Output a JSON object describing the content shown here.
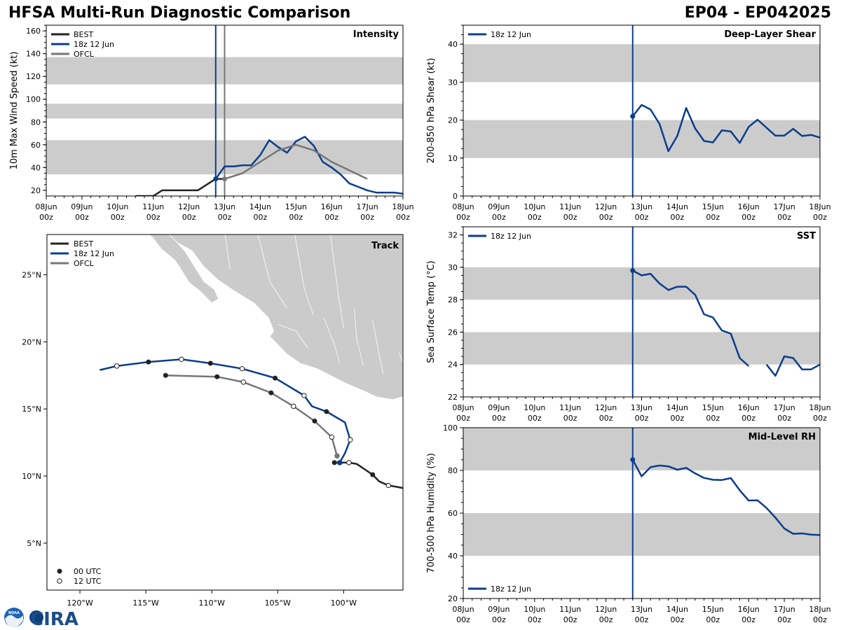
{
  "header": {
    "title": "HFSA Multi-Run Diagnostic Comparison",
    "storm_id": "EP04 - EP042025"
  },
  "logo": {
    "text": "CIRA",
    "noaa": "NOAA"
  },
  "colors": {
    "best": "#222222",
    "run": "#0b3d8c",
    "ofcl": "#777777",
    "band": "#cccccc",
    "land": "#cbcbcb"
  },
  "time_axis": {
    "labels": [
      "08Jun\n00z",
      "09Jun\n00z",
      "10Jun\n00z",
      "11Jun\n00z",
      "12Jun\n00z",
      "13Jun\n00z",
      "14Jun\n00z",
      "15Jun\n00z",
      "16Jun\n00z",
      "17Jun\n00z",
      "18Jun\n00z"
    ],
    "init_time_h": 114,
    "init_label": "18z 12 Jun"
  },
  "chart_data": [
    {
      "id": "intensity",
      "type": "line",
      "title": "Intensity",
      "ylabel": "10m Max Wind Speed (kt)",
      "xrange_h": [
        0,
        240
      ],
      "ylim": [
        15,
        165
      ],
      "yticks": [
        20,
        40,
        60,
        80,
        100,
        120,
        140,
        160
      ],
      "bands": [
        [
          34,
          64
        ],
        [
          83,
          96
        ],
        [
          113,
          137
        ]
      ],
      "vlines": [
        {
          "x_h": 114,
          "series": "run"
        },
        {
          "x_h": 120,
          "series": "ofcl"
        }
      ],
      "legend": [
        "BEST",
        "18z 12 Jun",
        "OFCL"
      ],
      "series": [
        {
          "name": "BEST",
          "key": "best",
          "x_h": [
            60,
            66,
            72,
            78,
            84,
            90,
            96,
            102,
            108,
            114,
            120
          ],
          "values": [
            15,
            15,
            15,
            20,
            20,
            20,
            20,
            20,
            25,
            30,
            30
          ]
        },
        {
          "name": "18z 12 Jun",
          "key": "run",
          "x_h": [
            114,
            120,
            126,
            132,
            138,
            144,
            150,
            156,
            162,
            168,
            174,
            180,
            186,
            192,
            198,
            204,
            210,
            216,
            222,
            228,
            234,
            240
          ],
          "values": [
            30,
            41,
            41,
            42,
            42,
            51,
            64,
            58,
            53,
            63,
            67,
            59,
            45,
            40,
            34,
            26,
            23,
            20,
            18,
            18,
            18,
            17
          ]
        },
        {
          "name": "OFCL",
          "key": "ofcl",
          "x_h": [
            120,
            132,
            144,
            156,
            168,
            180,
            192,
            216
          ],
          "values": [
            30,
            35,
            45,
            55,
            60,
            55,
            45,
            30
          ]
        }
      ]
    },
    {
      "id": "shear",
      "type": "line",
      "title": "Deep-Layer Shear",
      "ylabel": "200-850 hPa Shear (kt)",
      "xrange_h": [
        0,
        240
      ],
      "ylim": [
        0,
        45
      ],
      "yticks": [
        0,
        10,
        20,
        30,
        40
      ],
      "bands": [
        [
          10,
          20
        ],
        [
          30,
          40
        ]
      ],
      "vlines": [
        {
          "x_h": 114,
          "series": "run"
        }
      ],
      "legend": [
        "18z 12 Jun"
      ],
      "series": [
        {
          "name": "18z 12 Jun",
          "key": "run",
          "x_h": [
            114,
            120,
            126,
            132,
            138,
            144,
            150,
            156,
            162,
            168,
            174,
            180,
            186,
            192,
            198,
            204,
            210,
            216,
            222,
            228,
            234,
            240
          ],
          "values": [
            21,
            24,
            22.8,
            19,
            11.8,
            15.8,
            23.2,
            17.8,
            14.5,
            14.1,
            17.3,
            17,
            14,
            18.2,
            20.1,
            18,
            15.9,
            15.9,
            17.7,
            15.8,
            16.1,
            15.4
          ]
        }
      ]
    },
    {
      "id": "sst",
      "type": "line",
      "title": "SST",
      "ylabel": "Sea Surface Temp (°C)",
      "xrange_h": [
        0,
        240
      ],
      "ylim": [
        22,
        32.5
      ],
      "yticks": [
        22,
        24,
        26,
        28,
        30,
        32
      ],
      "bands": [
        [
          24,
          26
        ],
        [
          28,
          30
        ]
      ],
      "vlines": [
        {
          "x_h": 114,
          "series": "run"
        }
      ],
      "legend": [
        "18z 12 Jun"
      ],
      "series": [
        {
          "name": "18z 12 Jun",
          "key": "run",
          "x_h": [
            114,
            120,
            126,
            132,
            138,
            144,
            150,
            156,
            162,
            168,
            174,
            180,
            186,
            192,
            198,
            204,
            210,
            216,
            222,
            228,
            234,
            240
          ],
          "values": [
            29.8,
            29.5,
            29.6,
            29.0,
            28.6,
            28.8,
            28.8,
            28.3,
            27.1,
            26.9,
            26.1,
            25.9,
            24.4,
            23.9,
            null,
            24.0,
            23.3,
            24.5,
            24.4,
            23.7,
            23.7,
            24.0
          ]
        }
      ]
    },
    {
      "id": "rh",
      "type": "line",
      "title": "Mid-Level RH",
      "ylabel": "700-500 hPa Humidity (%)",
      "xrange_h": [
        0,
        240
      ],
      "ylim": [
        20,
        100
      ],
      "yticks": [
        20,
        40,
        60,
        80,
        100
      ],
      "bands": [
        [
          40,
          60
        ],
        [
          80,
          100
        ]
      ],
      "vlines": [
        {
          "x_h": 114,
          "series": "run"
        }
      ],
      "legend": [
        "18z 12 Jun"
      ],
      "legend_pos": "bottom-left",
      "series": [
        {
          "name": "18z 12 Jun",
          "key": "run",
          "x_h": [
            114,
            120,
            126,
            132,
            138,
            144,
            150,
            156,
            162,
            168,
            174,
            180,
            186,
            192,
            198,
            204,
            210,
            216,
            222,
            228,
            234,
            240
          ],
          "values": [
            85,
            77.2,
            81.5,
            82.3,
            81.9,
            80.3,
            81.2,
            78.6,
            76.5,
            75.6,
            75.5,
            76.4,
            70.7,
            65.9,
            66,
            62.4,
            57.9,
            52.8,
            50.3,
            50.5,
            49.9,
            49.7
          ]
        }
      ]
    },
    {
      "id": "track",
      "type": "scatter",
      "title": "Track",
      "xlim": [
        -122.5,
        -95.5
      ],
      "ylim": [
        1.5,
        28
      ],
      "xticks": [
        -120,
        -115,
        -110,
        -105,
        -100
      ],
      "xtick_labels": [
        "120°W",
        "115°W",
        "110°W",
        "105°W",
        "100°W"
      ],
      "yticks": [
        5,
        10,
        15,
        20,
        25
      ],
      "ytick_labels": [
        "5°N",
        "10°N",
        "15°N",
        "20°N",
        "25°N"
      ],
      "legend": [
        "BEST",
        "18z 12 Jun",
        "OFCL"
      ],
      "marker_legend": [
        "00 UTC",
        "12 UTC"
      ],
      "series": [
        {
          "name": "BEST",
          "key": "best",
          "lon": [
            -95.5,
            -96.0,
            -96.6,
            -97.3,
            -97.8,
            -98.4,
            -99.0,
            -99.6,
            -100.2,
            -100.7
          ],
          "lat": [
            9.1,
            9.2,
            9.3,
            9.6,
            10.1,
            10.5,
            10.9,
            11.0,
            11.0,
            11.0
          ],
          "markers": [
            null,
            null,
            "12",
            null,
            "00",
            null,
            null,
            "12",
            null,
            "00"
          ]
        },
        {
          "name": "18z 12 Jun",
          "key": "run",
          "lon": [
            -100.3,
            -99.9,
            -99.5,
            -99.9,
            -101.3,
            -102.4,
            -103.0,
            -105.2,
            -107.7,
            -110.1,
            -112.3,
            -114.8,
            -117.2,
            -118.5
          ],
          "lat": [
            11.0,
            11.7,
            12.7,
            14.0,
            14.8,
            15.2,
            16.0,
            17.3,
            18.0,
            18.4,
            18.7,
            18.5,
            18.2,
            17.9
          ],
          "markers": [
            "00",
            null,
            "12",
            null,
            "00",
            null,
            "12",
            "00",
            "12",
            "00",
            "12",
            "00",
            "12",
            null
          ]
        },
        {
          "name": "OFCL",
          "key": "ofcl",
          "lon": [
            -100.5,
            -100.9,
            -102.2,
            -103.8,
            -105.5,
            -107.6,
            -109.6,
            -113.5
          ],
          "lat": [
            11.5,
            12.9,
            14.1,
            15.2,
            16.2,
            17.0,
            17.4,
            17.5
          ],
          "markers": [
            null,
            "12",
            "00",
            "12",
            "00",
            "12",
            "00",
            "00"
          ]
        }
      ]
    }
  ]
}
